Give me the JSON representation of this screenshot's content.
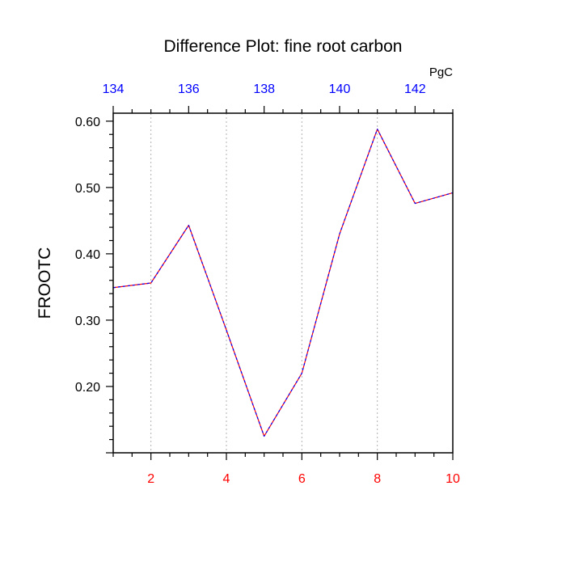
{
  "chart_data": {
    "type": "line",
    "title": "Difference Plot: fine root carbon",
    "ylabel": "FROOTC",
    "top_axis_unit": "PgC",
    "xlim": [
      1,
      10
    ],
    "ylim": [
      0.1,
      0.612
    ],
    "top_xlim": [
      134,
      143
    ],
    "x_ticks": [
      2,
      4,
      6,
      8,
      10
    ],
    "x_tick_labels": [
      "2",
      "4",
      "6",
      "8",
      "10"
    ],
    "top_ticks": [
      134,
      136,
      138,
      140,
      142
    ],
    "top_tick_labels": [
      "134",
      "136",
      "138",
      "140",
      "142"
    ],
    "y_ticks": [
      0.2,
      0.3,
      0.4,
      0.5,
      0.6
    ],
    "y_tick_labels": [
      "0.20",
      "0.30",
      "0.40",
      "0.50",
      "0.60"
    ],
    "grid": "vertical dotted at major bottom ticks",
    "series": [
      {
        "x": [
          1,
          2,
          3,
          4,
          5,
          6,
          7,
          8,
          9,
          10
        ],
        "values": [
          0.349,
          0.356,
          0.443,
          0.285,
          0.125,
          0.22,
          0.43,
          0.588,
          0.476,
          0.492
        ],
        "colors": {
          "line": "#ff0000",
          "dash": "#0000ff"
        }
      }
    ],
    "colors": {
      "bottom_axis_labels": "#ff0000",
      "top_axis_labels": "#0000ff",
      "text": "#000000"
    }
  }
}
